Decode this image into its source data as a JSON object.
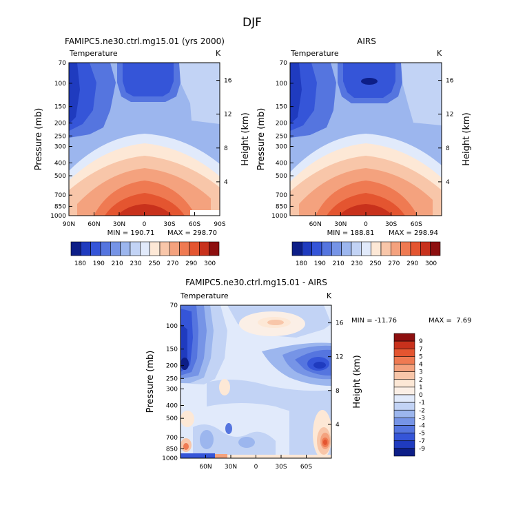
{
  "figure": {
    "title": "DJF"
  },
  "chart_data": [
    {
      "type": "heatmap",
      "title": "FAMIPC5.ne30.ctrl.mg15.01 (yrs 2000)",
      "variable": "Temperature",
      "units": "K",
      "xlabel": "",
      "ylabel": "Pressure (mb)",
      "ylabel_right": "Height (km)",
      "x_ticks": [
        "90N",
        "60N",
        "30N",
        "0",
        "30S",
        "60S",
        "90S"
      ],
      "y_ticks": [
        "70",
        "100",
        "150",
        "200",
        "250",
        "300",
        "400",
        "500",
        "700",
        "850",
        "1000"
      ],
      "height_ticks": [
        "16",
        "12",
        "8",
        "4"
      ],
      "min_label": "MIN = 190.71",
      "max_label": "MAX = 298.70",
      "min": 190.71,
      "max": 298.7,
      "colorbar_labels": [
        "180",
        "190",
        "210",
        "230",
        "250",
        "270",
        "290",
        "300"
      ],
      "colorbar_colors": [
        "#0d1e87",
        "#1f3bbf",
        "#3555d8",
        "#5575df",
        "#7694e6",
        "#9cb6ee",
        "#c2d3f5",
        "#e1eafb",
        "#fde8d6",
        "#f8c6a9",
        "#f4a27e",
        "#ef7a52",
        "#e45530",
        "#c8311c",
        "#8d0f0f"
      ]
    },
    {
      "type": "heatmap",
      "title": "AIRS",
      "variable": "Temperature",
      "units": "K",
      "xlabel": "",
      "ylabel": "Pressure (mb)",
      "ylabel_right": "Height (km)",
      "x_ticks": [
        "60N",
        "30N",
        "0",
        "30S",
        "60S"
      ],
      "y_ticks": [
        "70",
        "100",
        "150",
        "200",
        "250",
        "300",
        "400",
        "500",
        "700",
        "850",
        "1000"
      ],
      "height_ticks": [
        "16",
        "12",
        "8",
        "4"
      ],
      "min_label": "MIN = 188.81",
      "max_label": "MAX = 298.94",
      "min": 188.81,
      "max": 298.94,
      "colorbar_labels": [
        "180",
        "190",
        "210",
        "230",
        "250",
        "270",
        "290",
        "300"
      ],
      "colorbar_colors": [
        "#0d1e87",
        "#1f3bbf",
        "#3555d8",
        "#5575df",
        "#7694e6",
        "#9cb6ee",
        "#c2d3f5",
        "#e1eafb",
        "#fde8d6",
        "#f8c6a9",
        "#f4a27e",
        "#ef7a52",
        "#e45530",
        "#c8311c",
        "#8d0f0f"
      ]
    },
    {
      "type": "heatmap",
      "title": "FAMIPC5.ne30.ctrl.mg15.01 - AIRS",
      "variable": "Temperature",
      "units": "K",
      "xlabel": "",
      "ylabel": "Pressure (mb)",
      "ylabel_right": "Height (km)",
      "x_ticks": [
        "60N",
        "30N",
        "0",
        "30S",
        "60S"
      ],
      "y_ticks": [
        "70",
        "100",
        "150",
        "200",
        "250",
        "300",
        "400",
        "500",
        "700",
        "850",
        "1000"
      ],
      "height_ticks": [
        "16",
        "12",
        "8",
        "4"
      ],
      "min_label": "MIN = -11.76",
      "max_label": "MAX =  7.69",
      "min": -11.76,
      "max": 7.69,
      "colorbar_labels": [
        "9",
        "7",
        "5",
        "4",
        "3",
        "2",
        "1",
        "0",
        "-1",
        "-2",
        "-3",
        "-4",
        "-5",
        "-7",
        "-9"
      ],
      "colorbar_colors": [
        "#8d0f0f",
        "#c8311c",
        "#e45530",
        "#ef7a52",
        "#f4a27e",
        "#f8c6a9",
        "#fde8d6",
        "#fbefe6",
        "#e1eafb",
        "#c2d3f5",
        "#9cb6ee",
        "#7694e6",
        "#5575df",
        "#3555d8",
        "#1f3bbf",
        "#0d1e87"
      ]
    }
  ]
}
